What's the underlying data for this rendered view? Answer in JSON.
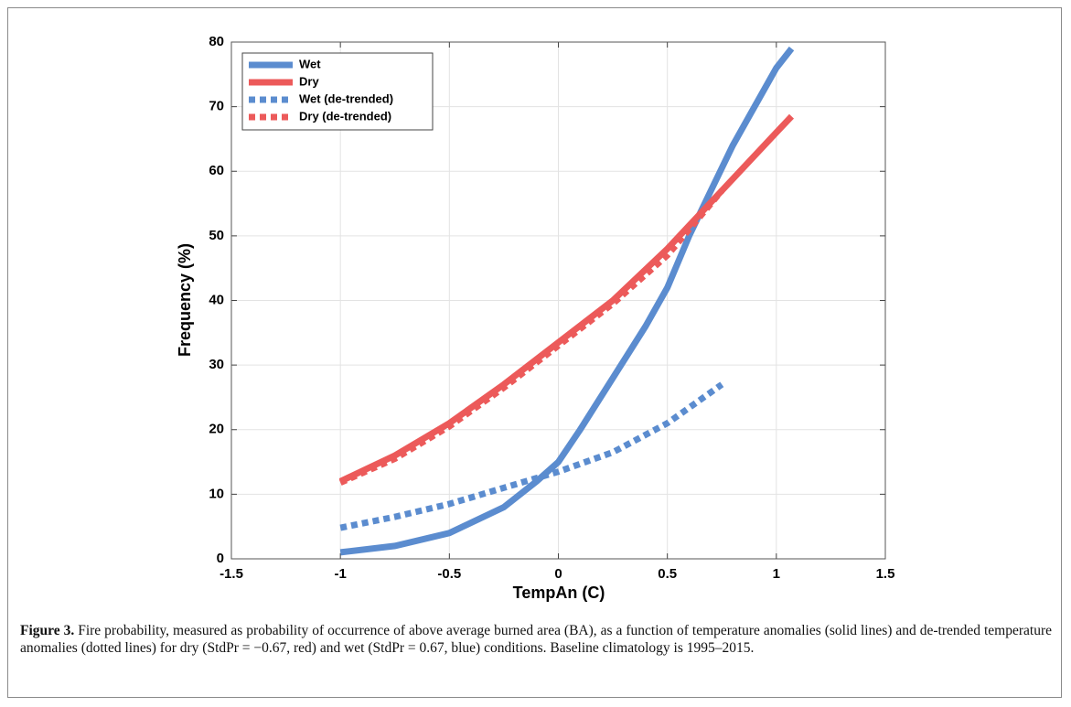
{
  "chart_data": {
    "type": "line",
    "xlabel": "TempAn (C)",
    "ylabel": "Frequency (%)",
    "xlim": [
      -1.5,
      1.5
    ],
    "xticks": [
      -1.5,
      -1,
      -0.5,
      0,
      0.5,
      1,
      1.5
    ],
    "ylim": [
      0,
      80
    ],
    "yticks": [
      0,
      10,
      20,
      30,
      40,
      50,
      60,
      70,
      80
    ],
    "grid": true,
    "legend": "upper left",
    "series": [
      {
        "name": "Wet",
        "color": "#5b8ccf",
        "style": "solid",
        "x": [
          -1,
          -0.75,
          -0.5,
          -0.25,
          -0.1,
          0,
          0.1,
          0.25,
          0.4,
          0.5,
          0.6,
          0.7,
          0.8,
          0.9,
          1.0,
          1.07
        ],
        "values": [
          1,
          2,
          4,
          8,
          12,
          15,
          20,
          28,
          36,
          42,
          50,
          57,
          64,
          70,
          76,
          79
        ]
      },
      {
        "name": "Dry",
        "color": "#ec5a5a",
        "style": "solid",
        "x": [
          -1,
          -0.75,
          -0.5,
          -0.25,
          0,
          0.25,
          0.5,
          0.75,
          1.0,
          1.07
        ],
        "values": [
          12,
          16,
          21,
          27,
          33.5,
          40,
          48,
          57,
          66,
          68.5
        ]
      },
      {
        "name": "Wet (de-trended)",
        "color": "#5b8ccf",
        "style": "dotted",
        "x": [
          -1,
          -0.75,
          -0.5,
          -0.25,
          0,
          0.25,
          0.5,
          0.75
        ],
        "values": [
          4.8,
          6.5,
          8.5,
          11,
          13.5,
          16.5,
          21,
          27
        ]
      },
      {
        "name": "Dry (de-trended)",
        "color": "#ec5a5a",
        "style": "dotted",
        "x": [
          -1,
          -0.75,
          -0.5,
          -0.25,
          0,
          0.25,
          0.5,
          0.75
        ],
        "values": [
          11.8,
          15.5,
          20.5,
          26.5,
          33,
          39.5,
          47,
          57
        ]
      }
    ]
  },
  "caption": {
    "label": "Figure 3.",
    "text": "Fire probability, measured as probability of occurrence of above average burned area (BA), as a function of temperature anomalies (solid lines) and de-trended temperature anomalies (dotted lines) for dry (StdPr = −0.67, red) and wet (StdPr = 0.67, blue) conditions. Baseline climatology is 1995–2015."
  }
}
